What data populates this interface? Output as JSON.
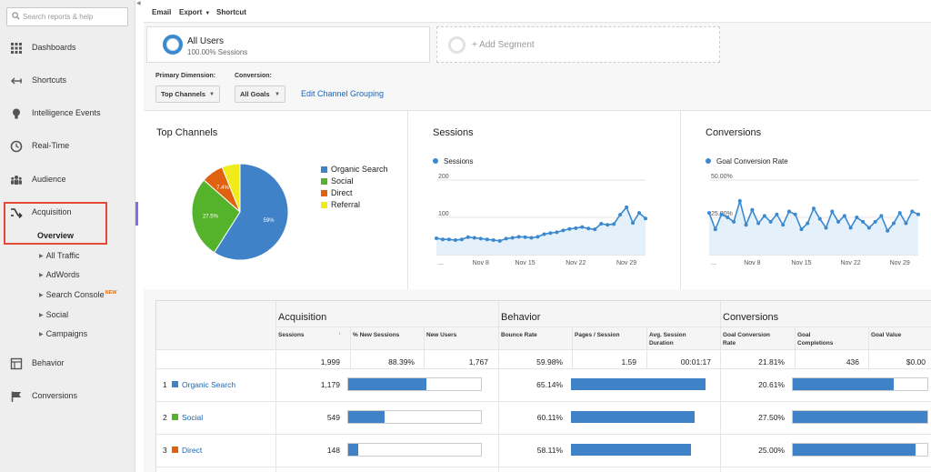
{
  "sidebar": {
    "search_placeholder": "Search reports & help",
    "items": [
      {
        "label": "Dashboards",
        "icon": "grid-icon"
      },
      {
        "label": "Shortcuts",
        "icon": "shortcut-arrow-icon"
      },
      {
        "label": "Intelligence Events",
        "icon": "lightbulb-icon"
      },
      {
        "label": "Real-Time",
        "icon": "clock-icon"
      },
      {
        "label": "Audience",
        "icon": "people-icon"
      },
      {
        "label": "Acquisition",
        "icon": "acquisition-arrows-icon"
      },
      {
        "label": "Behavior",
        "icon": "behavior-layout-icon"
      },
      {
        "label": "Conversions",
        "icon": "flag-icon"
      }
    ],
    "acquisition_sub": {
      "overview": "Overview",
      "children": [
        "All Traffic",
        "AdWords",
        "Search Console",
        "Social",
        "Campaigns"
      ],
      "new_badge": "NEW"
    }
  },
  "toolbar": {
    "email": "Email",
    "export": "Export",
    "shortcut": "Shortcut"
  },
  "segments": {
    "all_users": "All Users",
    "all_users_sub": "100.00% Sessions",
    "add_segment": "+ Add Segment"
  },
  "controls": {
    "primary_dimension_label": "Primary Dimension:",
    "primary_dimension_value": "Top Channels",
    "conversion_label": "Conversion:",
    "conversion_value": "All Goals",
    "edit_grouping": "Edit Channel Grouping"
  },
  "panels": {
    "top_channels_title": "Top Channels",
    "sessions_title": "Sessions",
    "conversions_title": "Conversions"
  },
  "colors": {
    "blue": "#3f82c8",
    "green": "#55b22b",
    "orange": "#e0610f",
    "yellow": "#f0ec1c",
    "link": "#1a65b8",
    "highlight": "#e44a35"
  },
  "chart_data": [
    {
      "type": "pie",
      "title": "Top Channels",
      "legend": [
        {
          "label": "Organic Search",
          "color": "#3f82c8"
        },
        {
          "label": "Social",
          "color": "#55b22b"
        },
        {
          "label": "Direct",
          "color": "#e0610f"
        },
        {
          "label": "Referral",
          "color": "#f0ec1c"
        }
      ],
      "slices": [
        {
          "label": "Organic Search",
          "value": 59,
          "display": "59%",
          "color": "#3f82c8"
        },
        {
          "label": "Social",
          "value": 27.5,
          "display": "27.5%",
          "color": "#55b22b"
        },
        {
          "label": "Direct",
          "value": 7.4,
          "display": "7.4%",
          "color": "#e0610f"
        },
        {
          "label": "Referral",
          "value": 6.1,
          "display": "",
          "color": "#f0ec1c"
        }
      ]
    },
    {
      "type": "area",
      "title": "Sessions",
      "series": [
        {
          "name": "Sessions",
          "values": [
            44,
            41,
            41,
            39,
            41,
            47,
            45,
            43,
            41,
            39,
            37,
            43,
            45,
            48,
            47,
            45,
            48,
            55,
            58,
            60,
            65,
            69,
            71,
            74,
            70,
            68,
            83,
            80,
            82,
            107,
            127,
            85,
            112,
            97
          ]
        }
      ],
      "yticks": [
        "200",
        "100"
      ],
      "ylim": [
        0,
        200
      ],
      "xticks": [
        "...",
        "Nov 8",
        "Nov 15",
        "Nov 22",
        "Nov 29"
      ]
    },
    {
      "type": "area",
      "title": "Conversions",
      "series": [
        {
          "name": "Goal Conversion Rate",
          "values": [
            28,
            17,
            27,
            25,
            22,
            36,
            20,
            30,
            21,
            26,
            22,
            27,
            20,
            29,
            27,
            17,
            21,
            31,
            24,
            18,
            29,
            22,
            26,
            18,
            25,
            22,
            18,
            22,
            26,
            16,
            21,
            28,
            21,
            29,
            27
          ]
        }
      ],
      "yticks": [
        "50.00%",
        "25.00%"
      ],
      "ylim": [
        0,
        50
      ],
      "xticks": [
        "...",
        "Nov 8",
        "Nov 15",
        "Nov 22",
        "Nov 29"
      ]
    }
  ],
  "table": {
    "groups": [
      "Acquisition",
      "Behavior",
      "Conversions"
    ],
    "columns": [
      "Sessions",
      "% New Sessions",
      "New Users",
      "Bounce Rate",
      "Pages / Session",
      "Avg. Session Duration",
      "Goal Conversion Rate",
      "Goal Completions",
      "Goal Value"
    ],
    "totals": [
      "1,999",
      "88.39%",
      "1,767",
      "59.98%",
      "1.59",
      "00:01:17",
      "21.81%",
      "436",
      "$0.00"
    ],
    "rows": [
      {
        "num": "1",
        "channel": "Organic Search",
        "color": "#3f82c8",
        "sessions": "1,179",
        "sessions_pct": 59,
        "bounce": "65.14%",
        "bounce_pct": 100,
        "conv": "20.61%",
        "conv_pct": 75
      },
      {
        "num": "2",
        "channel": "Social",
        "color": "#55b22b",
        "sessions": "549",
        "sessions_pct": 27.5,
        "bounce": "60.11%",
        "bounce_pct": 92,
        "conv": "27.50%",
        "conv_pct": 100
      },
      {
        "num": "3",
        "channel": "Direct",
        "color": "#e0610f",
        "sessions": "148",
        "sessions_pct": 7.4,
        "bounce": "58.11%",
        "bounce_pct": 89,
        "conv": "25.00%",
        "conv_pct": 91
      }
    ]
  }
}
